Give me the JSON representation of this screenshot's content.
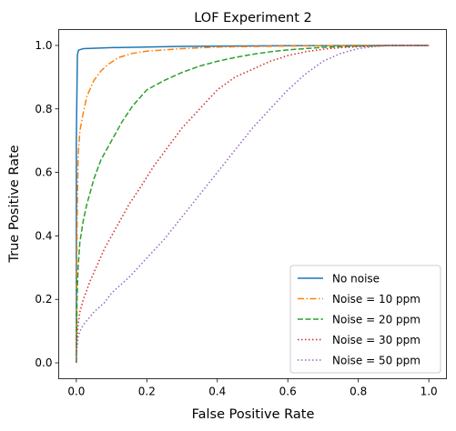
{
  "chart_data": {
    "type": "line",
    "title": "LOF Experiment 2",
    "xlabel": "False Positive Rate",
    "ylabel": "True Positive Rate",
    "xlim": [
      -0.05,
      1.05
    ],
    "ylim": [
      -0.05,
      1.05
    ],
    "xticks": [
      "0.0",
      "0.2",
      "0.4",
      "0.6",
      "0.8",
      "1.0"
    ],
    "yticks": [
      "0.0",
      "0.2",
      "0.4",
      "0.6",
      "0.8",
      "1.0"
    ],
    "grid": false,
    "legend_position": "lower-right",
    "series": [
      {
        "name": "No noise",
        "color": "#1f77b4",
        "linestyle": "solid",
        "x": [
          0,
          0,
          0.003,
          0.006,
          0.02,
          0.1,
          0.3,
          0.6,
          1.0
        ],
        "y": [
          0,
          0.7,
          0.97,
          0.985,
          0.99,
          0.993,
          0.997,
          0.999,
          1.0
        ]
      },
      {
        "name": "Noise = 10 ppm",
        "color": "#ff7f0e",
        "linestyle": "dashdot",
        "x": [
          0,
          0.001,
          0.003,
          0.005,
          0.01,
          0.02,
          0.03,
          0.05,
          0.07,
          0.09,
          0.12,
          0.16,
          0.2,
          0.3,
          0.4,
          0.6,
          0.8,
          1.0
        ],
        "y": [
          0,
          0.3,
          0.5,
          0.65,
          0.73,
          0.79,
          0.84,
          0.89,
          0.92,
          0.94,
          0.962,
          0.975,
          0.982,
          0.99,
          0.995,
          0.998,
          1.0,
          1.0
        ]
      },
      {
        "name": "Noise = 20 ppm",
        "color": "#2ca02c",
        "linestyle": "dashed",
        "x": [
          0,
          0.002,
          0.005,
          0.01,
          0.02,
          0.03,
          0.05,
          0.07,
          0.1,
          0.13,
          0.16,
          0.2,
          0.25,
          0.3,
          0.35,
          0.4,
          0.45,
          0.5,
          0.55,
          0.6,
          0.65,
          0.7,
          0.8,
          0.9,
          1.0
        ],
        "y": [
          0,
          0.2,
          0.3,
          0.38,
          0.45,
          0.5,
          0.58,
          0.64,
          0.7,
          0.76,
          0.81,
          0.86,
          0.89,
          0.915,
          0.935,
          0.95,
          0.962,
          0.972,
          0.98,
          0.986,
          0.99,
          0.994,
          0.998,
          1.0,
          1.0
        ]
      },
      {
        "name": "Noise = 30 ppm",
        "color": "#d62728",
        "linestyle": "dotted",
        "x": [
          0,
          0.002,
          0.005,
          0.01,
          0.02,
          0.04,
          0.06,
          0.08,
          0.1,
          0.12,
          0.15,
          0.18,
          0.22,
          0.26,
          0.3,
          0.35,
          0.4,
          0.45,
          0.5,
          0.55,
          0.6,
          0.65,
          0.7,
          0.75,
          0.8,
          0.85,
          0.9,
          1.0
        ],
        "y": [
          0,
          0.08,
          0.12,
          0.16,
          0.2,
          0.26,
          0.31,
          0.36,
          0.4,
          0.44,
          0.5,
          0.55,
          0.62,
          0.68,
          0.74,
          0.8,
          0.86,
          0.9,
          0.925,
          0.95,
          0.968,
          0.98,
          0.988,
          0.993,
          0.996,
          0.998,
          1.0,
          1.0
        ]
      },
      {
        "name": "Noise = 50 ppm",
        "color": "#9467bd",
        "linestyle": "dotted",
        "x": [
          0,
          0.002,
          0.005,
          0.01,
          0.02,
          0.05,
          0.08,
          0.1,
          0.15,
          0.2,
          0.25,
          0.3,
          0.35,
          0.4,
          0.45,
          0.5,
          0.55,
          0.6,
          0.65,
          0.7,
          0.75,
          0.8,
          0.85,
          0.9,
          1.0
        ],
        "y": [
          0,
          0.05,
          0.08,
          0.1,
          0.12,
          0.16,
          0.19,
          0.22,
          0.27,
          0.33,
          0.39,
          0.46,
          0.53,
          0.6,
          0.67,
          0.74,
          0.8,
          0.86,
          0.91,
          0.95,
          0.975,
          0.99,
          0.997,
          1.0,
          1.0
        ]
      }
    ]
  }
}
